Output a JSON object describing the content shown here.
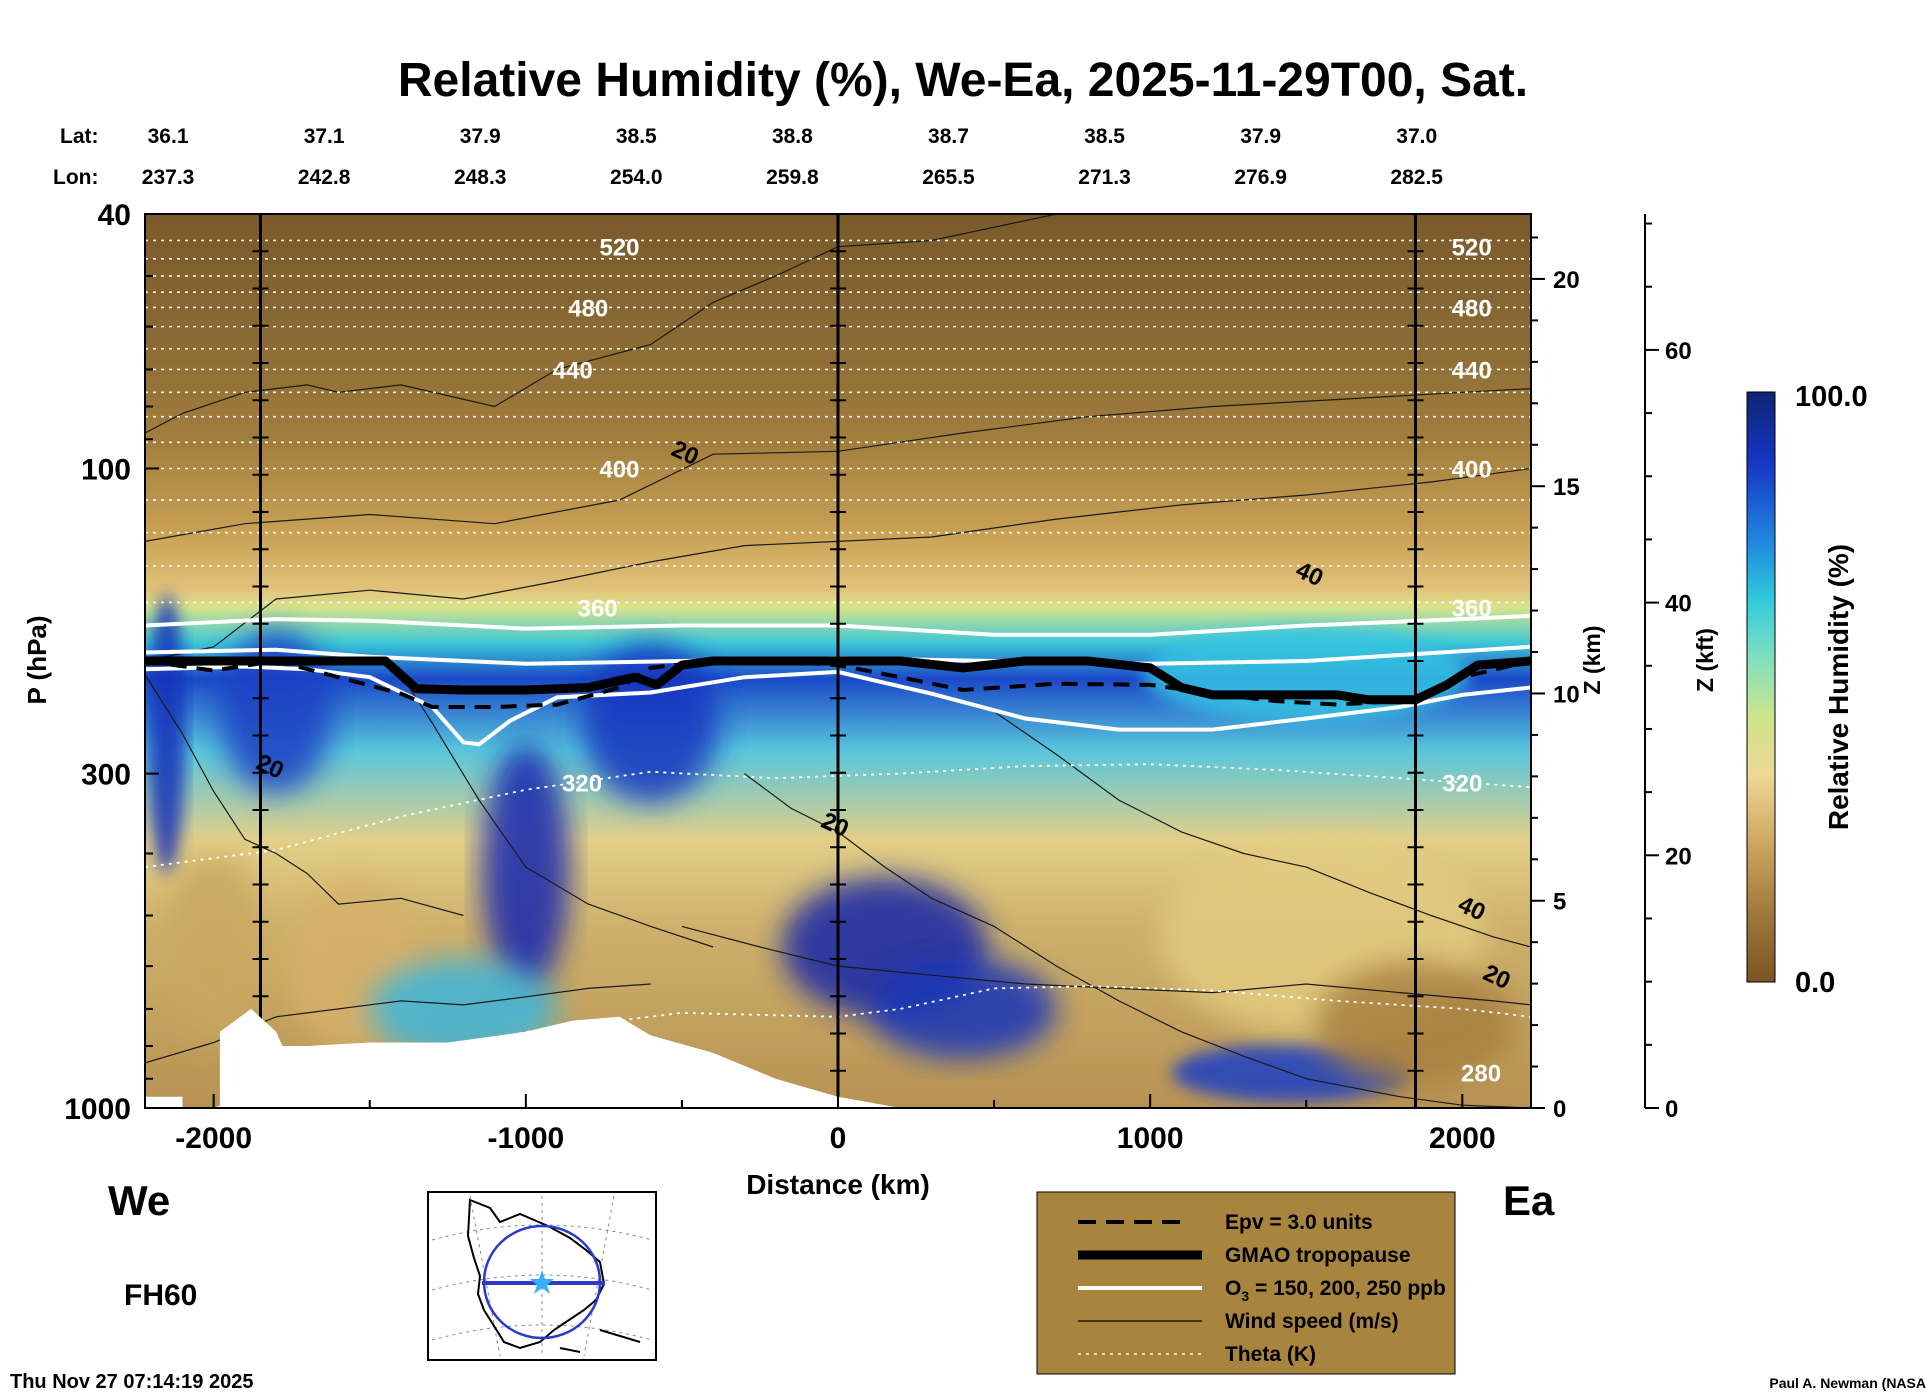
{
  "chart_data": {
    "type": "heatmap",
    "title": "Relative Humidity (%), We-Ea, 2025-11-29T00, Sat.",
    "xlabel": "Distance (km)",
    "ylabel": "P (hPa)",
    "y2label": "Z (km)",
    "y3label": "Z (kft)",
    "colorbar_label": "Relative Humidity (%)",
    "colorbar_range": [
      0.0,
      100.0
    ],
    "colorbar_ticks": [
      "100.0",
      "0.0"
    ],
    "xlim": [
      -2220,
      2220
    ],
    "x_ticks": [
      -2000,
      -1000,
      0,
      1000,
      2000
    ],
    "x_tick_labels": [
      "-2000",
      "-1000",
      "0",
      "1000",
      "2000"
    ],
    "y_scale": "log",
    "ylim": [
      1000,
      40
    ],
    "y_ticks": [
      40,
      100,
      300,
      1000
    ],
    "y_tick_labels": [
      "40",
      "100",
      "300",
      "1000"
    ],
    "z_km_ticks": [
      0,
      5,
      10,
      15,
      20
    ],
    "z_km_tick_labels": [
      "0",
      "5",
      "10",
      "15",
      "20"
    ],
    "z_kft_ticks": [
      0,
      20,
      40,
      60
    ],
    "z_kft_tick_labels": [
      "0",
      "20",
      "40",
      "60"
    ],
    "lat_header": "Lat:",
    "lon_header": "Lon:",
    "lat": [
      "36.1",
      "37.1",
      "37.9",
      "38.5",
      "38.8",
      "38.7",
      "38.5",
      "37.9",
      "37.0"
    ],
    "lon": [
      "237.3",
      "242.8",
      "248.3",
      "254.0",
      "259.8",
      "265.5",
      "271.3",
      "276.9",
      "282.5"
    ],
    "vertical_markers_km": [
      -1850,
      0,
      1850
    ],
    "tropopause_hpa": {
      "x": [
        -2220,
        -1800,
        -1450,
        -1350,
        -1200,
        -1000,
        -800,
        -650,
        -580,
        -500,
        -400,
        -200,
        0,
        200,
        400,
        600,
        800,
        1000,
        1100,
        1200,
        1400,
        1600,
        1700,
        1850,
        1950,
        2050,
        2220
      ],
      "p": [
        200,
        200,
        200,
        221,
        222,
        222,
        220,
        212,
        218,
        203,
        200,
        200,
        200,
        200,
        205,
        200,
        200,
        205,
        220,
        226,
        226,
        226,
        230,
        230,
        218,
        203,
        200
      ]
    },
    "epv_hpa": {
      "x": [
        -2220,
        -2000,
        -1800,
        -1600,
        -1400,
        -1300,
        -1100,
        -900,
        -700,
        -600,
        -450,
        -200,
        0,
        200,
        400,
        700,
        1000,
        1200,
        1400,
        1600,
        1850,
        2000,
        2220
      ],
      "p": [
        200,
        207,
        200,
        212,
        225,
        236,
        236,
        234,
        220,
        205,
        201,
        200,
        203,
        212,
        222,
        217,
        218,
        225,
        231,
        234,
        230,
        212,
        200
      ]
    },
    "ozone_ppb": [
      {
        "name": "150",
        "x": [
          -2220,
          -1800,
          -1500,
          -1000,
          -500,
          0,
          500,
          1000,
          1500,
          2000,
          2220
        ],
        "p": [
          176,
          172,
          173,
          178,
          176,
          176,
          182,
          182,
          176,
          172,
          170
        ]
      },
      {
        "name": "200",
        "x": [
          -2220,
          -1800,
          -1500,
          -1000,
          -500,
          0,
          500,
          1000,
          1500,
          2000,
          2220
        ],
        "p": [
          194,
          192,
          197,
          202,
          200,
          198,
          200,
          202,
          200,
          193,
          190
        ]
      },
      {
        "name": "250",
        "x": [
          -2220,
          -1900,
          -1700,
          -1500,
          -1300,
          -1200,
          -1150,
          -1050,
          -900,
          -600,
          -300,
          0,
          300,
          600,
          900,
          1200,
          1500,
          1800,
          2000,
          2220
        ],
        "p": [
          206,
          204,
          206,
          212,
          236,
          268,
          270,
          248,
          228,
          224,
          212,
          208,
          225,
          246,
          256,
          256,
          246,
          236,
          226,
          220
        ]
      }
    ],
    "theta_levels_K": [
      {
        "label": "520",
        "p": 45
      },
      {
        "label": "480",
        "p": 56
      },
      {
        "label": "440",
        "p": 70
      },
      {
        "label": "400",
        "p": 100
      },
      {
        "label": "360",
        "p": 165
      },
      {
        "label": "320",
        "p": 310
      },
      {
        "label": "280",
        "p": 880
      }
    ],
    "theta_lines_hpa": [
      44,
      47,
      50,
      53,
      56,
      60,
      65,
      70,
      76,
      83,
      91,
      100,
      112,
      126,
      142,
      162
    ],
    "theta_320": {
      "x": [
        -2220,
        -1800,
        -1400,
        -1000,
        -600,
        -200,
        200,
        600,
        1000,
        1400,
        1800,
        2220
      ],
      "p": [
        420,
        395,
        350,
        318,
        298,
        305,
        300,
        292,
        290,
        296,
        305,
        315
      ]
    },
    "theta_280": {
      "x": [
        -2220,
        -2000,
        -1800,
        -1600,
        -1400,
        -1000,
        -500,
        0,
        200,
        500,
        800,
        1200,
        1600,
        2000,
        2220
      ],
      "p": [
        1000,
        1000,
        950,
        860,
        840,
        760,
        710,
        720,
        700,
        650,
        645,
        655,
        680,
        700,
        720
      ]
    },
    "wind_labels_ms": [
      {
        "label": "20",
        "x": -1830,
        "p": 300
      },
      {
        "label": "20",
        "x": -500,
        "p": 97
      },
      {
        "label": "40",
        "x": 1500,
        "p": 150
      },
      {
        "label": "20",
        "x": -20,
        "p": 370
      },
      {
        "label": "40",
        "x": 2020,
        "p": 500
      },
      {
        "label": "20",
        "x": 2100,
        "p": 640
      }
    ],
    "wind_lines": [
      {
        "x": [
          -2220,
          -2100,
          -1900,
          -1700,
          -1600,
          -1400,
          -1100,
          -900,
          -600,
          -400,
          -200,
          0,
          300,
          700,
          1000,
          1400,
          1800,
          2220
        ],
        "p": [
          88,
          82,
          76,
          74,
          76,
          74,
          80,
          70,
          64,
          55,
          50,
          45,
          44,
          40,
          40,
          40,
          40,
          40
        ]
      },
      {
        "x": [
          -2220,
          -1900,
          -1500,
          -1100,
          -700,
          -400,
          0,
          400,
          800,
          1200,
          1600,
          2000,
          2220
        ],
        "p": [
          130,
          122,
          118,
          122,
          112,
          95,
          94,
          88,
          83,
          80,
          78,
          76,
          75
        ]
      },
      {
        "x": [
          -2220,
          -2000,
          -1800,
          -1500,
          -1200,
          -900,
          -600,
          -300,
          0,
          300,
          700,
          1100,
          1500,
          1900,
          2220
        ],
        "p": [
          200,
          190,
          160,
          155,
          160,
          150,
          140,
          132,
          130,
          128,
          120,
          114,
          110,
          105,
          100
        ]
      },
      {
        "x": [
          -2220,
          -2100,
          -2000,
          -1900,
          -1800,
          -1700,
          -1600,
          -1400,
          -1200
        ],
        "p": [
          210,
          260,
          320,
          380,
          400,
          430,
          480,
          470,
          500
        ]
      },
      {
        "x": [
          -1400,
          -1300,
          -1150,
          -1000,
          -800,
          -600,
          -400
        ],
        "p": [
          210,
          250,
          330,
          420,
          480,
          520,
          560
        ]
      },
      {
        "x": [
          -300,
          -150,
          0,
          150,
          300,
          500,
          700,
          900,
          1100,
          1300,
          1500,
          1800,
          2000,
          2220
        ],
        "p": [
          300,
          340,
          370,
          420,
          470,
          520,
          600,
          680,
          760,
          830,
          900,
          960,
          990,
          1000
        ]
      },
      {
        "x": [
          500,
          700,
          900,
          1100,
          1300,
          1500,
          1700,
          1900,
          2100,
          2220
        ],
        "p": [
          240,
          280,
          330,
          370,
          400,
          420,
          460,
          500,
          540,
          560
        ]
      },
      {
        "x": [
          -2220,
          -2000,
          -1800,
          -1600,
          -1400,
          -1200,
          -1000,
          -800,
          -600
        ],
        "p": [
          850,
          790,
          720,
          700,
          680,
          690,
          670,
          650,
          640
        ]
      },
      {
        "x": [
          -500,
          -250,
          0,
          300,
          600,
          900,
          1200,
          1500,
          1800,
          2100,
          2220
        ],
        "p": [
          520,
          560,
          600,
          620,
          640,
          650,
          660,
          640,
          660,
          680,
          690
        ]
      }
    ],
    "region_label_left": "We",
    "region_label_right": "Ea",
    "forecast_hour": "FH60",
    "legend": [
      {
        "label": "Epv = 3.0 units",
        "style": "dashed-black"
      },
      {
        "label": "GMAO tropopause",
        "style": "thick-black"
      },
      {
        "label_main": "O",
        "label_sub": "3",
        "label_rest": " = 150, 200, 250 ppb",
        "style": "white"
      },
      {
        "label": "Wind speed (m/s)",
        "style": "thin-black"
      },
      {
        "label": "Theta (K)",
        "style": "dotted-white"
      }
    ],
    "legend_bg_color": "#a8853e",
    "timestamp": "Thu Nov 27 07:14:19 2025",
    "credit": "Paul A. Newman (NASA"
  }
}
